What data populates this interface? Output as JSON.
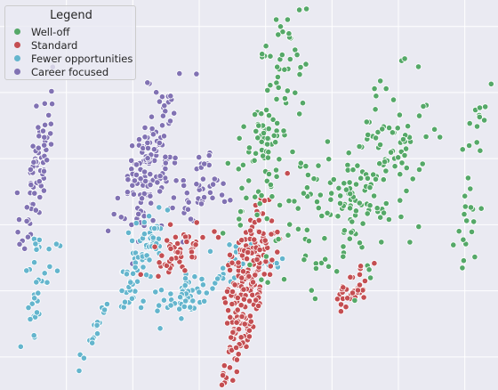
{
  "chart_data": {
    "type": "scatter",
    "title": "",
    "xlabel": "",
    "ylabel": "",
    "grid": true,
    "legend": {
      "title": "Legend",
      "placement": "top-left"
    },
    "series": [
      {
        "name": "Well-off",
        "color": "#55a868"
      },
      {
        "name": "Standard",
        "color": "#c44e52"
      },
      {
        "name": "Fewer opportunities",
        "color": "#64b5cd"
      },
      {
        "name": "Career focused",
        "color": "#8172b3"
      }
    ],
    "xlim": [
      -1,
      6.5
    ],
    "ylim": [
      -0.5,
      5.4
    ],
    "x_gridlines": [
      0,
      1,
      2,
      3,
      4,
      5,
      6
    ],
    "y_gridlines": [
      0,
      1,
      2,
      3,
      4,
      5
    ]
  }
}
